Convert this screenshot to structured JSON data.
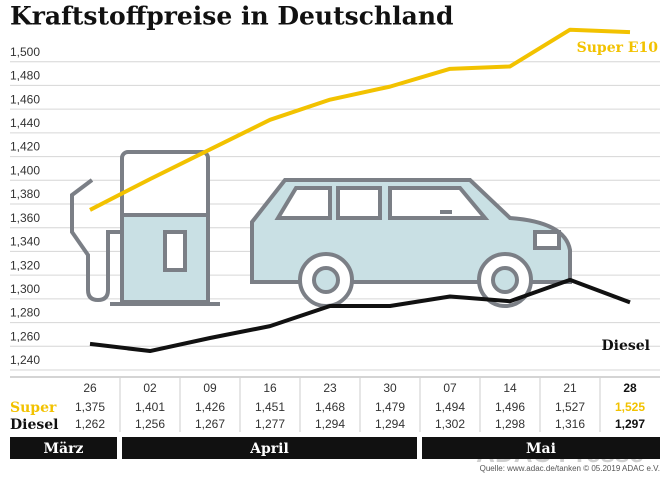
{
  "chart_data": {
    "type": "line",
    "title": "Kraftstoffpreise in Deutschland",
    "categories": [
      "26",
      "02",
      "09",
      "16",
      "23",
      "30",
      "07",
      "14",
      "21",
      "28"
    ],
    "series": [
      {
        "name": "Super E10",
        "row_label": "Super",
        "color": "#f2c200",
        "values": [
          1.375,
          1.401,
          1.426,
          1.451,
          1.468,
          1.479,
          1.494,
          1.496,
          1.527,
          1.525
        ],
        "value_labels": [
          "1,375",
          "1,401",
          "1,426",
          "1,451",
          "1,468",
          "1,479",
          "1,494",
          "1,496",
          "1,527",
          "1,525"
        ]
      },
      {
        "name": "Diesel",
        "row_label": "Diesel",
        "color": "#111111",
        "values": [
          1.262,
          1.256,
          1.267,
          1.277,
          1.294,
          1.294,
          1.302,
          1.298,
          1.316,
          1.297
        ],
        "value_labels": [
          "1,262",
          "1,256",
          "1,267",
          "1,277",
          "1,294",
          "1,294",
          "1,302",
          "1,298",
          "1,316",
          "1,297"
        ]
      }
    ],
    "month_groups": [
      {
        "label": "März",
        "count": 1
      },
      {
        "label": "April",
        "count": 5
      },
      {
        "label": "Mai",
        "count": 4
      }
    ],
    "ylim": [
      1.24,
      1.52
    ],
    "yticks": [
      {
        "value": 1.24,
        "label": "1,240"
      },
      {
        "value": 1.26,
        "label": "1,260"
      },
      {
        "value": 1.28,
        "label": "1,280"
      },
      {
        "value": 1.3,
        "label": "1,300"
      },
      {
        "value": 1.32,
        "label": "1,320"
      },
      {
        "value": 1.34,
        "label": "1,340"
      },
      {
        "value": 1.36,
        "label": "1,360"
      },
      {
        "value": 1.38,
        "label": "1,380"
      },
      {
        "value": 1.4,
        "label": "1,400"
      },
      {
        "value": 1.42,
        "label": "1,420"
      },
      {
        "value": 1.44,
        "label": "1,440"
      },
      {
        "value": 1.46,
        "label": "1,460"
      },
      {
        "value": 1.48,
        "label": "1,480"
      },
      {
        "value": 1.5,
        "label": "1,500"
      }
    ],
    "grid": true,
    "watermark": "ADAC Presse",
    "source": "Quelle: www.adac.de/tanken  © 05.2019  ADAC e.V."
  }
}
